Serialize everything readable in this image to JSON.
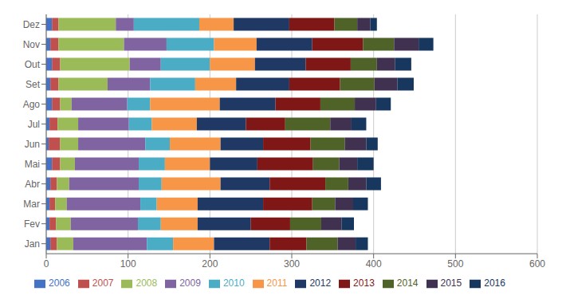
{
  "chart_data": {
    "type": "bar",
    "orientation": "horizontal",
    "stacked": true,
    "categories": [
      "Jan",
      "Fev",
      "Mar",
      "Abr",
      "Mai",
      "Jun",
      "Jul",
      "Ago",
      "Set",
      "Out",
      "Nov",
      "Dez"
    ],
    "series": [
      {
        "name": "2006",
        "color": "#4472c4",
        "values": [
          5,
          4,
          4,
          5,
          7,
          3,
          4,
          7,
          5,
          7,
          5,
          7
        ]
      },
      {
        "name": "2007",
        "color": "#c0504d",
        "values": [
          8,
          8,
          7,
          8,
          10,
          14,
          10,
          10,
          10,
          10,
          10,
          8
        ]
      },
      {
        "name": "2008",
        "color": "#9bbb59",
        "values": [
          20,
          18,
          14,
          15,
          18,
          22,
          25,
          14,
          60,
          85,
          80,
          70
        ]
      },
      {
        "name": "2009",
        "color": "#8064a2",
        "values": [
          90,
          82,
          90,
          85,
          78,
          82,
          62,
          68,
          52,
          38,
          52,
          22
        ]
      },
      {
        "name": "2010",
        "color": "#4bacc6",
        "values": [
          32,
          28,
          20,
          28,
          32,
          30,
          28,
          28,
          55,
          60,
          58,
          80
        ]
      },
      {
        "name": "2011",
        "color": "#f79646",
        "values": [
          50,
          45,
          50,
          72,
          55,
          62,
          55,
          85,
          50,
          55,
          52,
          42
        ]
      },
      {
        "name": "2012",
        "color": "#1f3864",
        "values": [
          68,
          65,
          80,
          60,
          58,
          52,
          60,
          68,
          65,
          62,
          68,
          68
        ]
      },
      {
        "name": "2013",
        "color": "#7f1717",
        "values": [
          45,
          48,
          60,
          68,
          68,
          58,
          48,
          55,
          62,
          55,
          62,
          55
        ]
      },
      {
        "name": "2014",
        "color": "#4f6228",
        "values": [
          38,
          38,
          28,
          28,
          32,
          42,
          55,
          42,
          42,
          32,
          38,
          28
        ]
      },
      {
        "name": "2015",
        "color": "#403151",
        "values": [
          22,
          25,
          22,
          22,
          22,
          26,
          26,
          26,
          28,
          22,
          30,
          16
        ]
      },
      {
        "name": "2016",
        "color": "#17375e",
        "values": [
          15,
          15,
          18,
          18,
          20,
          14,
          18,
          18,
          20,
          20,
          18,
          8
        ]
      }
    ],
    "xlim": [
      0,
      600
    ],
    "xticks": [
      0,
      100,
      200,
      300,
      400,
      500,
      600
    ],
    "grid": true,
    "legend": "bottom"
  }
}
